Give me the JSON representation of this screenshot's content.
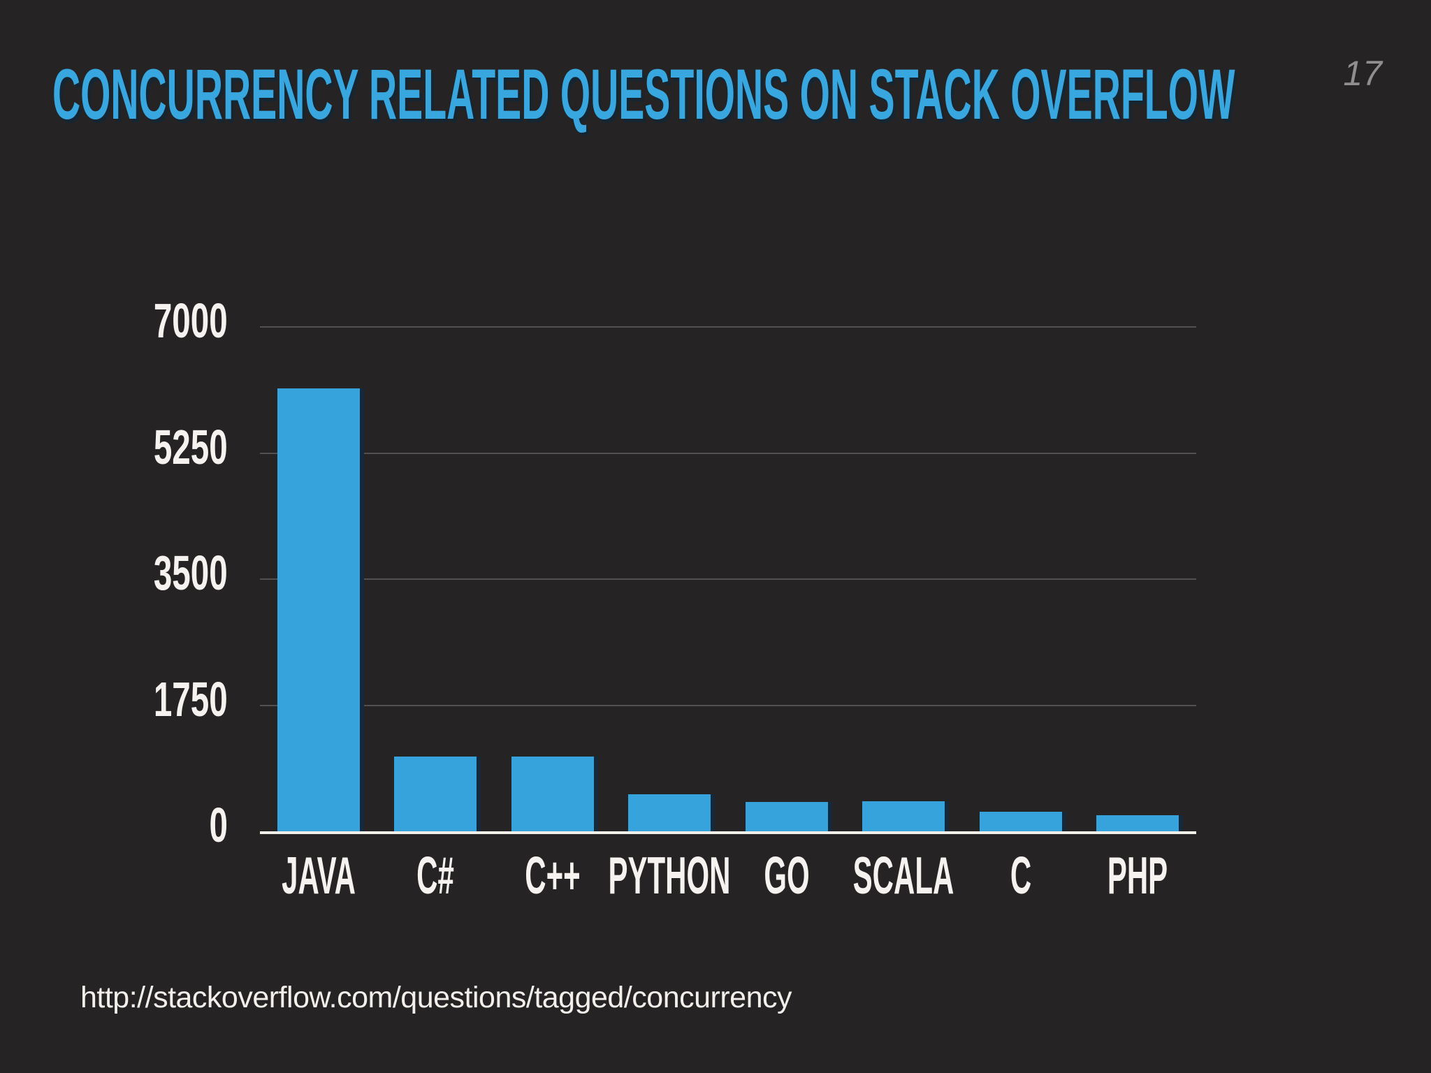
{
  "title": "CONCURRENCY RELATED QUESTIONS ON STACK OVERFLOW",
  "page_number": "17",
  "footer": {
    "url": "http://stackoverflow.com/questions/tagged/concurrency"
  },
  "colors": {
    "background": "#252324",
    "title_text": "#38A7DF",
    "bar_fill": "#36A3DC",
    "bar_shadow": "#14293C",
    "gridline": "#544F50",
    "axis_line": "#F2EFEA",
    "label_text": "#F5F2EF",
    "url_text": "#F3F0EC",
    "page_number_text": "#8F8F8F"
  },
  "chart_data": {
    "type": "bar",
    "title": "Concurrency related questions on Stack Overflow",
    "categories": [
      "JAVA",
      "C#",
      "C++",
      "PYTHON",
      "GO",
      "SCALA",
      "C",
      "PHP"
    ],
    "values": [
      6150,
      1040,
      1040,
      510,
      410,
      415,
      270,
      225
    ],
    "xlabel": "",
    "ylabel": "",
    "ylim": [
      0,
      7000
    ],
    "yticks": [
      0,
      1750,
      3500,
      5250,
      7000
    ],
    "grid": "horizontal-gridlines",
    "legend": "none",
    "bar_color": "#36A3DC"
  }
}
